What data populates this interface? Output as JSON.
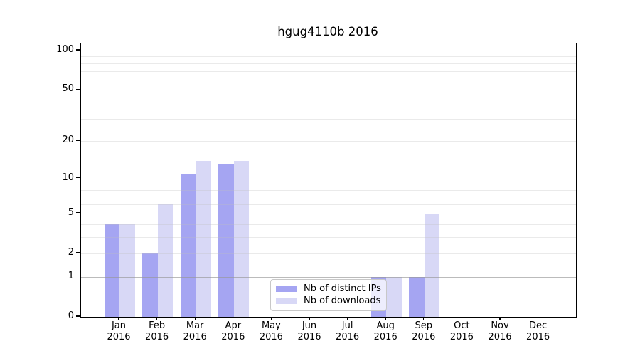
{
  "title": "hgug4110b 2016",
  "colors": {
    "distinct_ips": "#a5a5f2",
    "downloads": "#d8d8f6",
    "axis": "#000000",
    "major_grid": "#b4b4b4",
    "minor_grid": "#e9e9e9",
    "background": "#ffffff",
    "legend_border": "#c8c8c8"
  },
  "legend": {
    "items": [
      "Nb of distinct IPs",
      "Nb of downloads"
    ]
  },
  "x_axis": {
    "months": [
      {
        "month": "Jan",
        "year": "2016"
      },
      {
        "month": "Feb",
        "year": "2016"
      },
      {
        "month": "Mar",
        "year": "2016"
      },
      {
        "month": "Apr",
        "year": "2016"
      },
      {
        "month": "May",
        "year": "2016"
      },
      {
        "month": "Jun",
        "year": "2016"
      },
      {
        "month": "Jul",
        "year": "2016"
      },
      {
        "month": "Aug",
        "year": "2016"
      },
      {
        "month": "Sep",
        "year": "2016"
      },
      {
        "month": "Oct",
        "year": "2016"
      },
      {
        "month": "Nov",
        "year": "2016"
      },
      {
        "month": "Dec",
        "year": "2016"
      }
    ]
  },
  "chart_data": {
    "type": "bar",
    "title": "hgug4110b 2016",
    "categories": [
      "Jan 2016",
      "Feb 2016",
      "Mar 2016",
      "Apr 2016",
      "May 2016",
      "Jun 2016",
      "Jul 2016",
      "Aug 2016",
      "Sep 2016",
      "Oct 2016",
      "Nov 2016",
      "Dec 2016"
    ],
    "series": [
      {
        "name": "Nb of distinct IPs",
        "color": "#a5a5f2",
        "values": [
          4,
          2,
          11,
          13,
          0,
          0,
          0,
          1,
          1,
          0,
          0,
          0
        ]
      },
      {
        "name": "Nb of downloads",
        "color": "#d8d8f6",
        "values": [
          4,
          6,
          14,
          14,
          0,
          0,
          0,
          1,
          5,
          0,
          0,
          0
        ]
      }
    ],
    "xlabel": "",
    "ylabel": "",
    "ylim": [
      0,
      100
    ],
    "y_scale": "log10(1+x)",
    "y_ticks": [
      0,
      1,
      2,
      5,
      10,
      20,
      50,
      100
    ],
    "major_gridlines": [
      1,
      10,
      100
    ],
    "minor_gridlines": [
      2,
      3,
      4,
      5,
      6,
      7,
      8,
      9,
      20,
      30,
      40,
      50,
      60,
      70,
      80,
      90
    ],
    "grid": true,
    "legend_position": "inside lower center"
  }
}
